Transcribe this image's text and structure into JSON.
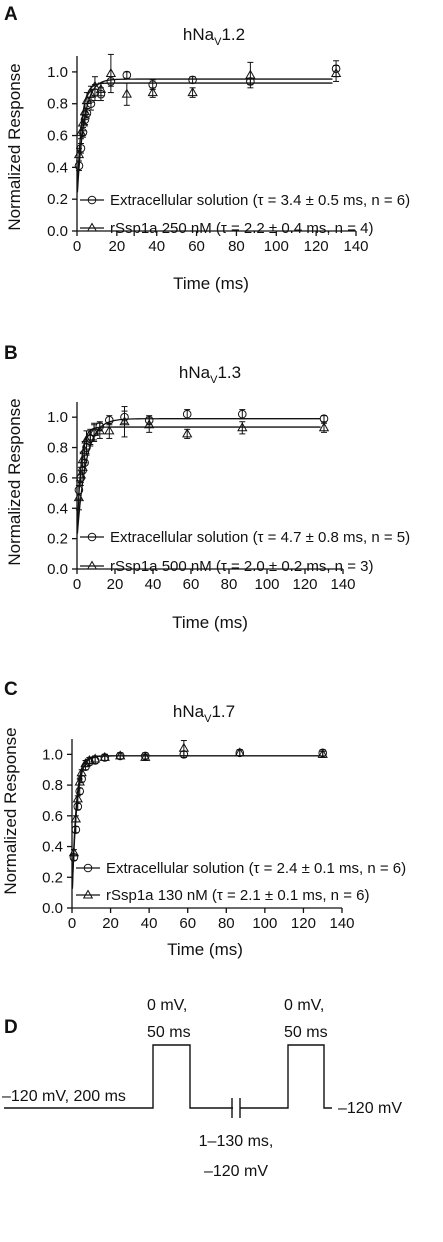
{
  "panels": [
    {
      "letter": "A",
      "title_main": "hNa",
      "title_sub": "V",
      "title_suffix": "1.2",
      "xlabel": "Time (ms)",
      "ylabel": "Normalized Response",
      "x_ticks": [
        "0",
        "20",
        "40",
        "60",
        "80",
        "100",
        "120",
        "140"
      ],
      "y_ticks": [
        "0.0",
        "0.2",
        "0.4",
        "0.6",
        "0.8",
        "1.0"
      ],
      "legend": [
        {
          "marker": "circle",
          "text": "Extracellular solution (τ = 3.4 ± 0.5 ms, n = 6)"
        },
        {
          "marker": "triangle",
          "text": "rSsp1a 250 nM (τ = 2.2 ± 0.4 ms, n = 4)"
        }
      ]
    },
    {
      "letter": "B",
      "title_main": "hNa",
      "title_sub": "V",
      "title_suffix": "1.3",
      "xlabel": "Time (ms)",
      "ylabel": "Normalized Response",
      "x_ticks": [
        "0",
        "20",
        "40",
        "60",
        "80",
        "100",
        "120",
        "140"
      ],
      "y_ticks": [
        "0.0",
        "0.2",
        "0.4",
        "0.6",
        "0.8",
        "1.0"
      ],
      "legend": [
        {
          "marker": "circle",
          "text": "Extracellular solution (τ = 4.7 ± 0.8 ms, n = 5)"
        },
        {
          "marker": "triangle",
          "text": "rSsp1a 500 nM (τ = 2.0 ± 0.2 ms, n = 3)"
        }
      ]
    },
    {
      "letter": "C",
      "title_main": "hNa",
      "title_sub": "V",
      "title_suffix": "1.7",
      "xlabel": "Time (ms)",
      "ylabel": "Normalized Response",
      "x_ticks": [
        "0",
        "20",
        "40",
        "60",
        "80",
        "100",
        "120",
        "140"
      ],
      "y_ticks": [
        "0.0",
        "0.2",
        "0.4",
        "0.6",
        "0.8",
        "1.0"
      ],
      "legend": [
        {
          "marker": "circle",
          "text": "Extracellular solution (τ = 2.4 ± 0.1 ms, n = 6)"
        },
        {
          "marker": "triangle",
          "text": "rSsp1a 130 nM (τ = 2.1 ± 0.1 ms, n = 6)"
        }
      ]
    }
  ],
  "protocol": {
    "letter": "D",
    "holding_label": "–120 mV, 200 ms",
    "pulse1_label_line1": "0 mV,",
    "pulse1_label_line2": "50 ms",
    "pulse2_label_line1": "0 mV,",
    "pulse2_label_line2": "50 ms",
    "interval_label_line1": "1–130 ms,",
    "interval_label_line2": "–120 mV",
    "end_label": "–120 mV"
  },
  "chart_data": [
    {
      "type": "scatter",
      "title": "hNaV1.2",
      "xlabel": "Time (ms)",
      "ylabel": "Normalized Response",
      "xlim": [
        0,
        140
      ],
      "ylim": [
        0,
        1.1
      ],
      "series": [
        {
          "name": "Extracellular solution (τ = 3.4 ± 0.5 ms, n = 6)",
          "marker": "circle",
          "x": [
            1,
            2,
            3,
            4,
            5,
            7,
            9,
            12,
            17,
            25,
            38,
            58,
            87,
            130
          ],
          "y": [
            0.41,
            0.52,
            0.62,
            0.7,
            0.74,
            0.8,
            0.87,
            0.86,
            0.94,
            0.98,
            0.92,
            0.95,
            0.94,
            1.02
          ],
          "err": [
            0.03,
            0.03,
            0.03,
            0.03,
            0.03,
            0.04,
            0.05,
            0.04,
            0.03,
            0.02,
            0.03,
            0.02,
            0.02,
            0.05
          ],
          "fit": {
            "tau_ms": 3.4,
            "plateau": 0.955,
            "y0": 0.2
          }
        },
        {
          "name": "rSsp1a 250 nM (τ = 2.2 ± 0.4 ms, n = 4)",
          "marker": "triangle",
          "x": [
            1,
            2,
            3,
            4,
            5,
            7,
            9,
            12,
            17,
            25,
            38,
            58,
            87,
            130
          ],
          "y": [
            0.48,
            0.62,
            0.68,
            0.75,
            0.82,
            0.86,
            0.91,
            0.89,
            0.99,
            0.86,
            0.87,
            0.87,
            0.98,
            0.99
          ],
          "err": [
            0.04,
            0.04,
            0.05,
            0.05,
            0.05,
            0.05,
            0.06,
            0.04,
            0.12,
            0.07,
            0.03,
            0.03,
            0.08,
            0.05
          ],
          "fit": {
            "tau_ms": 2.2,
            "plateau": 0.93,
            "y0": 0.2
          }
        }
      ]
    },
    {
      "type": "scatter",
      "title": "hNaV1.3",
      "xlabel": "Time (ms)",
      "ylabel": "Normalized Response",
      "xlim": [
        0,
        140
      ],
      "ylim": [
        0,
        1.1
      ],
      "series": [
        {
          "name": "Extracellular solution (τ = 4.7 ± 0.8 ms, n = 5)",
          "marker": "circle",
          "x": [
            1,
            2,
            3,
            4,
            5,
            7,
            9,
            12,
            17,
            25,
            38,
            58,
            87,
            130
          ],
          "y": [
            0.52,
            0.6,
            0.65,
            0.7,
            0.8,
            0.86,
            0.9,
            0.94,
            0.98,
            1.0,
            0.98,
            1.02,
            1.02,
            0.99
          ],
          "err": [
            0.06,
            0.05,
            0.05,
            0.05,
            0.05,
            0.05,
            0.05,
            0.03,
            0.03,
            0.04,
            0.03,
            0.03,
            0.03,
            0.02
          ],
          "fit": {
            "tau_ms": 4.7,
            "plateau": 0.99,
            "y0": 0.2
          }
        },
        {
          "name": "rSsp1a 500 nM (τ = 2.0 ± 0.2 ms, n = 3)",
          "marker": "triangle",
          "x": [
            1,
            2,
            3,
            4,
            5,
            7,
            9,
            12,
            17,
            25,
            38,
            58,
            87,
            130
          ],
          "y": [
            0.47,
            0.62,
            0.72,
            0.78,
            0.85,
            0.87,
            0.9,
            0.91,
            0.91,
            0.97,
            0.95,
            0.89,
            0.93,
            0.93
          ],
          "err": [
            0.08,
            0.05,
            0.05,
            0.06,
            0.06,
            0.05,
            0.06,
            0.05,
            0.05,
            0.1,
            0.05,
            0.03,
            0.04,
            0.03
          ],
          "fit": {
            "tau_ms": 2.0,
            "plateau": 0.935,
            "y0": 0.2
          }
        }
      ]
    },
    {
      "type": "scatter",
      "title": "hNaV1.7",
      "xlabel": "Time (ms)",
      "ylabel": "Normalized Response",
      "xlim": [
        0,
        140
      ],
      "ylim": [
        0,
        1.1
      ],
      "series": [
        {
          "name": "Extracellular solution (τ = 2.4 ± 0.1 ms, n = 6)",
          "marker": "circle",
          "x": [
            1,
            2,
            3,
            4,
            5,
            7,
            9,
            12,
            17,
            25,
            38,
            58,
            87,
            130
          ],
          "y": [
            0.33,
            0.51,
            0.66,
            0.76,
            0.84,
            0.92,
            0.95,
            0.96,
            0.98,
            0.99,
            0.99,
            1.0,
            1.01,
            1.01
          ],
          "err": [
            0.02,
            0.02,
            0.02,
            0.02,
            0.02,
            0.02,
            0.02,
            0.02,
            0.02,
            0.02,
            0.02,
            0.02,
            0.02,
            0.02
          ],
          "fit": {
            "tau_ms": 2.4,
            "plateau": 0.99,
            "y0": 0.05
          }
        },
        {
          "name": "rSsp1a 130 nM (τ = 2.1 ± 0.1 ms, n = 6)",
          "marker": "triangle",
          "x": [
            1,
            2,
            3,
            4,
            5,
            7,
            9,
            12,
            17,
            25,
            38,
            58,
            87,
            130
          ],
          "y": [
            0.36,
            0.58,
            0.71,
            0.82,
            0.88,
            0.94,
            0.96,
            0.97,
            0.98,
            0.99,
            0.98,
            1.04,
            1.01,
            1.0
          ],
          "err": [
            0.02,
            0.02,
            0.02,
            0.02,
            0.02,
            0.02,
            0.02,
            0.02,
            0.02,
            0.02,
            0.02,
            0.05,
            0.02,
            0.02
          ],
          "fit": {
            "tau_ms": 2.1,
            "plateau": 0.99,
            "y0": 0.05
          }
        }
      ]
    }
  ]
}
